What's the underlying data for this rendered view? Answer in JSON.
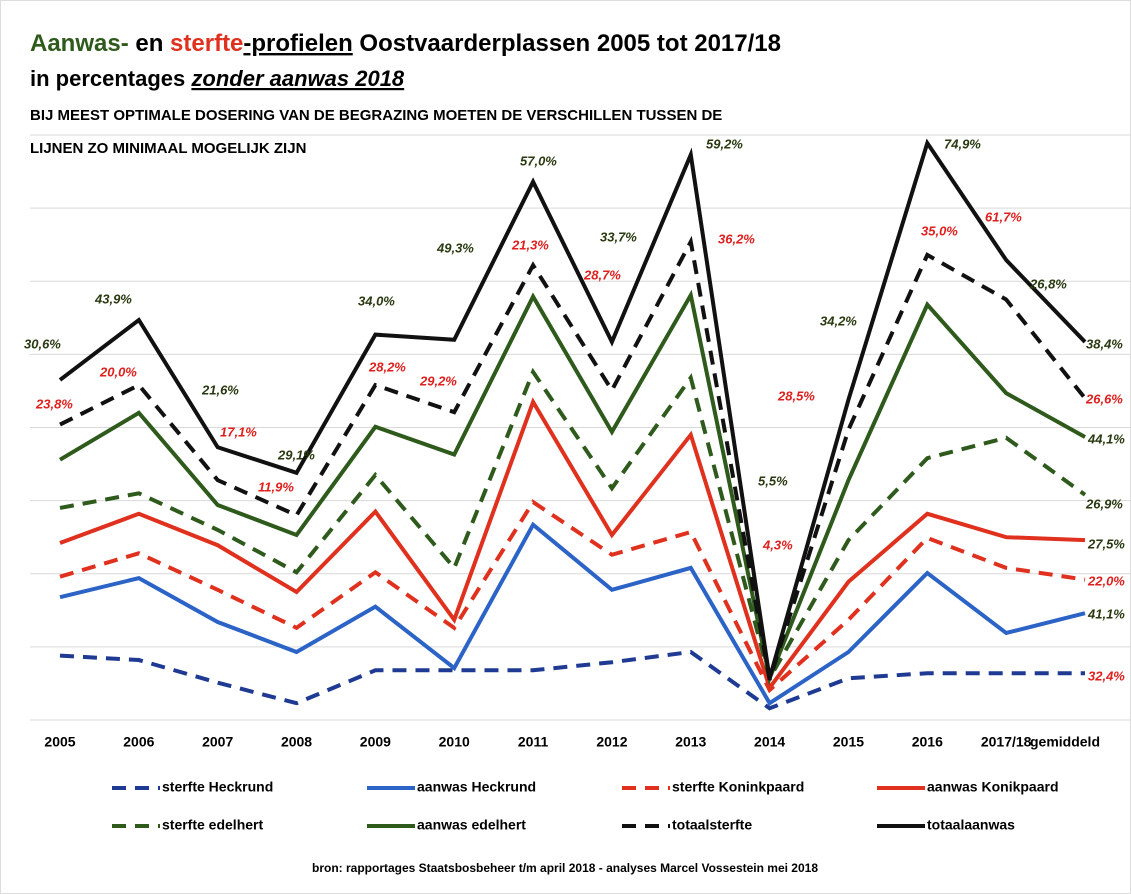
{
  "chart_data": {
    "type": "line",
    "title_parts": [
      "Aanwas-",
      " en ",
      "sterfte",
      "-profielen",
      " Oostvaarderplassen 2005 tot 2017/18"
    ],
    "title_line2_parts": [
      "in percentages ",
      "zonder aanwas 2018"
    ],
    "subtitle_lines": [
      "BIJ MEEST OPTIMALE DOSERING VAN DE BEGRAZING MOETEN DE VERSCHILLEN TUSSEN DE",
      "LIJNEN ZO MINIMAAL MOGELIJK ZIJN"
    ],
    "source": "bron: rapportages Staatsbosbeheer t/m april 2018 - analyses Marcel Vossestein mei 2018",
    "categories": [
      "2005",
      "2006",
      "2007",
      "2008",
      "2009",
      "2010",
      "2011",
      "2012",
      "2013",
      "2014",
      "2015",
      "2016",
      "2017/18",
      "gemiddeld"
    ],
    "ylim": [
      0,
      80
    ],
    "yticks": [
      0,
      10,
      20,
      30,
      40,
      50,
      60,
      70,
      80
    ],
    "grid": true,
    "series": [
      {
        "name": "sterfte Heckrund",
        "color": "#1f3a93",
        "dashed": true,
        "values": [
          8.8,
          8.2,
          5.1,
          2.3,
          6.8,
          6.8,
          6.8,
          7.9,
          9.3,
          1.6,
          5.7,
          6.4,
          6.4,
          6.4
        ]
      },
      {
        "name": "aanwas Heckrund",
        "color": "#2b63c6",
        "dashed": false,
        "values": [
          16.8,
          19.4,
          13.4,
          9.3,
          15.5,
          7.1,
          26.7,
          17.8,
          20.8,
          2.3,
          9.3,
          20.1,
          11.9,
          14.6
        ]
      },
      {
        "name": "sterfte Koninkpaard",
        "color": "#e0301e",
        "dashed": true,
        "values": [
          19.6,
          22.8,
          17.8,
          12.6,
          20.2,
          12.6,
          29.8,
          22.6,
          25.7,
          4.1,
          13.7,
          24.9,
          20.8,
          19.2
        ]
      },
      {
        "name": "aanwas Konikpaard",
        "color": "#e0301e",
        "dashed": false,
        "values": [
          24.2,
          28.2,
          23.9,
          17.5,
          28.5,
          13.7,
          43.5,
          25.3,
          39.0,
          4.4,
          18.9,
          28.2,
          25.0,
          24.6
        ]
      },
      {
        "name": "sterfte edelhert",
        "color": "#2e5a1c",
        "dashed": true,
        "values": [
          29.0,
          31.0,
          26.0,
          20.2,
          33.5,
          20.8,
          47.6,
          31.7,
          46.8,
          5.7,
          24.6,
          35.8,
          38.6,
          30.8
        ]
      },
      {
        "name": "aanwas  edelhert",
        "color": "#2e5a1c",
        "dashed": false,
        "values": [
          35.6,
          42.0,
          29.4,
          25.3,
          40.1,
          36.3,
          57.9,
          39.4,
          58.1,
          5.7,
          32.8,
          56.8,
          44.7,
          38.7
        ]
      },
      {
        "name": "totaalsterfte",
        "color": "#111111",
        "dashed": true,
        "values": [
          40.4,
          45.8,
          32.8,
          28.0,
          45.8,
          42.1,
          62.2,
          45.1,
          65.4,
          5.5,
          39.7,
          63.6,
          57.5,
          44.0
        ]
      },
      {
        "name": "totaalaanwas",
        "color": "#111111",
        "dashed": false,
        "values": [
          46.5,
          54.7,
          37.3,
          33.8,
          52.7,
          52.0,
          73.6,
          51.7,
          77.3,
          5.7,
          43.8,
          78.9,
          62.9,
          51.7
        ]
      }
    ],
    "annotations": [
      "30,6%",
      "23,8%",
      "43,9%",
      "20,0%",
      "21,6%",
      "17,1%",
      "29,1%",
      "11,9%",
      "34,0%",
      "28,2%",
      "49,3%",
      "29,2%",
      "57,0%",
      "21,3%",
      "33,7%",
      "28,7%",
      "59,2%",
      "36,2%",
      "5,5%",
      "4,3%",
      "34,2%",
      "28,5%",
      "74,9%",
      "35,0%",
      "61,7%",
      "26,8%",
      "38,4%",
      "26,6%",
      "44,1%",
      "26,9%",
      "27,5%",
      "22,0%",
      "41,1%",
      "32,4%"
    ]
  }
}
